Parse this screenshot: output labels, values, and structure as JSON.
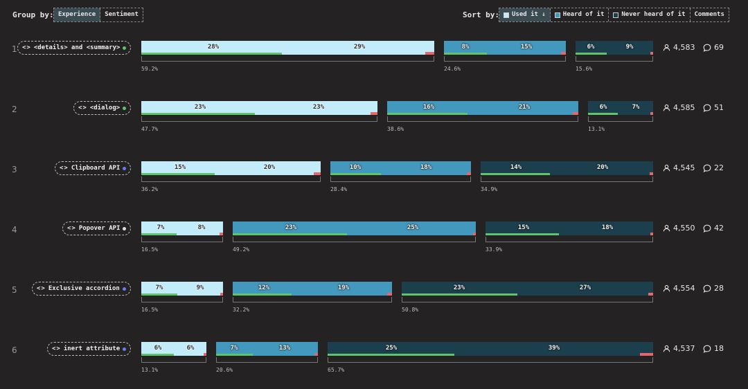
{
  "toolbar": {
    "group_label": "Group by:",
    "group_options": [
      "Experience",
      "Sentiment"
    ],
    "group_active": 0,
    "sort_label": "Sort by:",
    "sort_options": [
      "Used it ↓",
      "Heard of it",
      "Never heard of it",
      "Comments"
    ],
    "sort_active": 0
  },
  "colors": {
    "used": "#c3ecfb",
    "heard": "#4398bd",
    "never": "#1b3f4c",
    "positive": "#5fc46a",
    "negative": "#e4686a"
  },
  "chart_data": {
    "type": "bar",
    "title": "",
    "categories": [
      "Used it",
      "Heard of it",
      "Never heard of it"
    ],
    "rows": [
      {
        "rank": "1",
        "feature": "<details> and <summary>",
        "dot": "#5fc46a",
        "groups": [
          {
            "category": "Used it",
            "total": 59.2,
            "total_label": "59.2%",
            "segments": [
              28,
              29
            ],
            "labels": [
              "28%",
              "29%"
            ],
            "green": 0.48,
            "red": 0.03
          },
          {
            "category": "Heard of it",
            "total": 24.6,
            "total_label": "24.6%",
            "segments": [
              8,
              15
            ],
            "labels": [
              "8%",
              "15%"
            ],
            "green": 0.35,
            "red": 0.04
          },
          {
            "category": "Never heard of it",
            "total": 15.6,
            "total_label": "15.6%",
            "segments": [
              6,
              9
            ],
            "labels": [
              "6%",
              "9%"
            ],
            "green": 0.4,
            "red": 0.03
          }
        ],
        "respondents": "4,583",
        "comments": "69"
      },
      {
        "rank": "2",
        "feature": "<dialog>",
        "dot": "#5fc46a",
        "groups": [
          {
            "category": "Used it",
            "total": 47.7,
            "total_label": "47.7%",
            "segments": [
              23,
              23
            ],
            "labels": [
              "23%",
              "23%"
            ],
            "green": 0.48,
            "red": 0.03
          },
          {
            "category": "Heard of it",
            "total": 38.6,
            "total_label": "38.6%",
            "segments": [
              16,
              21
            ],
            "labels": [
              "16%",
              "21%"
            ],
            "green": 0.42,
            "red": 0.03
          },
          {
            "category": "Never heard of it",
            "total": 13.1,
            "total_label": "13.1%",
            "segments": [
              6,
              7
            ],
            "labels": [
              "6%",
              "7%"
            ],
            "green": 0.46,
            "red": 0.03
          }
        ],
        "respondents": "4,585",
        "comments": "51"
      },
      {
        "rank": "3",
        "feature": "Clipboard API",
        "dot": "#6a7de8",
        "groups": [
          {
            "category": "Used it",
            "total": 36.2,
            "total_label": "36.2%",
            "segments": [
              15,
              20
            ],
            "labels": [
              "15%",
              "20%"
            ],
            "green": 0.41,
            "red": 0.04
          },
          {
            "category": "Heard of it",
            "total": 28.4,
            "total_label": "28.4%",
            "segments": [
              10,
              18
            ],
            "labels": [
              "10%",
              "18%"
            ],
            "green": 0.36,
            "red": 0.03
          },
          {
            "category": "Never heard of it",
            "total": 34.9,
            "total_label": "34.9%",
            "segments": [
              14,
              20
            ],
            "labels": [
              "14%",
              "20%"
            ],
            "green": 0.4,
            "red": 0.02
          }
        ],
        "respondents": "4,545",
        "comments": "22"
      },
      {
        "rank": "4",
        "feature": "Popover API",
        "dot": "#e0e0e0",
        "groups": [
          {
            "category": "Used it",
            "total": 16.5,
            "total_label": "16.5%",
            "segments": [
              7,
              8
            ],
            "labels": [
              "7%",
              "8%"
            ],
            "green": 0.43,
            "red": 0.04
          },
          {
            "category": "Heard of it",
            "total": 49.2,
            "total_label": "49.2%",
            "segments": [
              23,
              25
            ],
            "labels": [
              "23%",
              "25%"
            ],
            "green": 0.47,
            "red": 0.01
          },
          {
            "category": "Never heard of it",
            "total": 33.9,
            "total_label": "33.9%",
            "segments": [
              15,
              18
            ],
            "labels": [
              "15%",
              "18%"
            ],
            "green": 0.44,
            "red": 0.01
          }
        ],
        "respondents": "4,550",
        "comments": "42"
      },
      {
        "rank": "5",
        "feature": "Exclusive accordion",
        "dot": "#6a7de8",
        "groups": [
          {
            "category": "Used it",
            "total": 16.5,
            "total_label": "16.5%",
            "segments": [
              7,
              9
            ],
            "labels": [
              "7%",
              "9%"
            ],
            "green": 0.44,
            "red": 0.02
          },
          {
            "category": "Heard of it",
            "total": 32.2,
            "total_label": "32.2%",
            "segments": [
              12,
              19
            ],
            "labels": [
              "12%",
              "19%"
            ],
            "green": 0.37,
            "red": 0.03
          },
          {
            "category": "Never heard of it",
            "total": 50.8,
            "total_label": "50.8%",
            "segments": [
              23,
              27
            ],
            "labels": [
              "23%",
              "27%"
            ],
            "green": 0.46,
            "red": 0.02
          }
        ],
        "respondents": "4,554",
        "comments": "28"
      },
      {
        "rank": "6",
        "feature": "inert attribute",
        "dot": "#6a7de8",
        "groups": [
          {
            "category": "Used it",
            "total": 13.1,
            "total_label": "13.1%",
            "segments": [
              6,
              6
            ],
            "labels": [
              "6%",
              "6%"
            ],
            "green": 0.5,
            "red": 0.03
          },
          {
            "category": "Heard of it",
            "total": 20.6,
            "total_label": "20.6%",
            "segments": [
              7,
              13
            ],
            "labels": [
              "7%",
              "13%"
            ],
            "green": 0.36,
            "red": 0.03
          },
          {
            "category": "Never heard of it",
            "total": 65.7,
            "total_label": "65.7%",
            "segments": [
              25,
              39
            ],
            "labels": [
              "25%",
              "39%"
            ],
            "green": 0.39,
            "red": 0.04
          }
        ],
        "respondents": "4,537",
        "comments": "18"
      }
    ]
  }
}
